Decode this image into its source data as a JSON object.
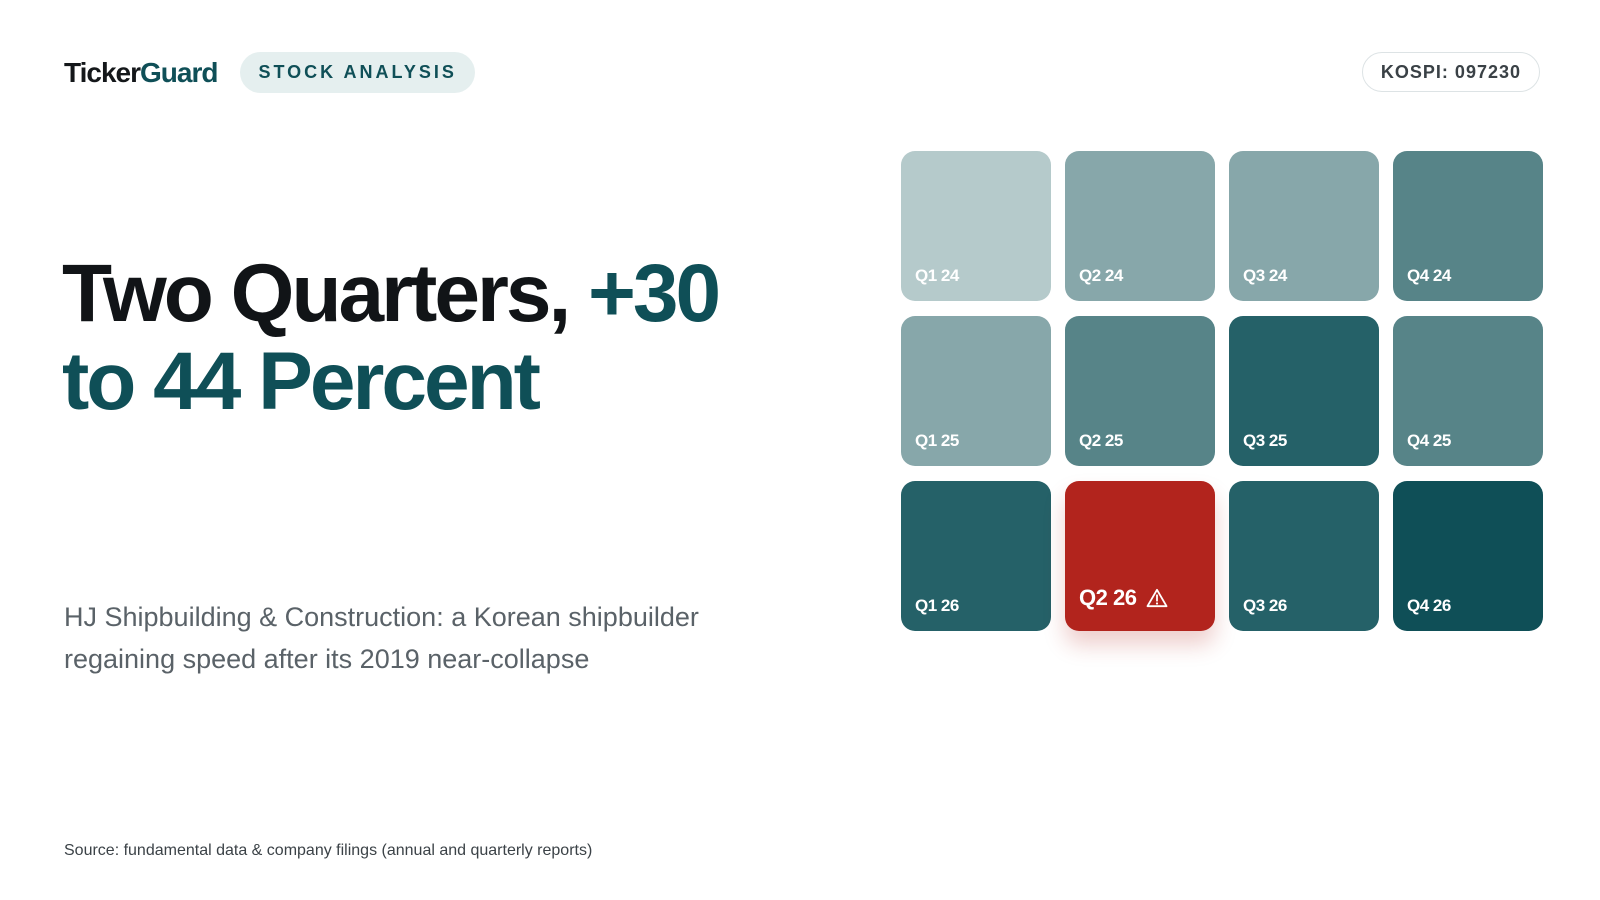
{
  "header": {
    "logo_dark": "Ticker",
    "logo_accent": "Guard",
    "badge": "STOCK ANALYSIS",
    "ticker": "KOSPI: 097230"
  },
  "headline": {
    "part1": "Two Quarters, ",
    "part2": "+30 to 44 Percent"
  },
  "subtitle": "HJ Shipbuilding & Construction: a Korean shipbuilder regaining speed after its 2019 near-collapse",
  "source": "Source: fundamental data & company filings (annual and quarterly reports)",
  "colors": {
    "brand": "#0f4f57",
    "alert": "#b2241d",
    "shade_lightest": "#b5cacb",
    "shade_light": "#87a7aa",
    "shade_mid": "#578488",
    "shade_dark": "#256168",
    "shade_darkest": "#0f4f57"
  },
  "quarters": [
    {
      "label": "Q1 24",
      "color": "#b5cacb"
    },
    {
      "label": "Q2 24",
      "color": "#87a7aa"
    },
    {
      "label": "Q3 24",
      "color": "#87a7aa"
    },
    {
      "label": "Q4 24",
      "color": "#578488"
    },
    {
      "label": "Q1 25",
      "color": "#87a7aa"
    },
    {
      "label": "Q2 25",
      "color": "#578488"
    },
    {
      "label": "Q3 25",
      "color": "#256168"
    },
    {
      "label": "Q4 25",
      "color": "#578488"
    },
    {
      "label": "Q1 26",
      "color": "#256168"
    },
    {
      "label": "Q2 26",
      "color": "#b2241d",
      "highlight": true,
      "icon": "warning-icon"
    },
    {
      "label": "Q3 26",
      "color": "#256168"
    },
    {
      "label": "Q4 26",
      "color": "#0f4f57"
    }
  ]
}
